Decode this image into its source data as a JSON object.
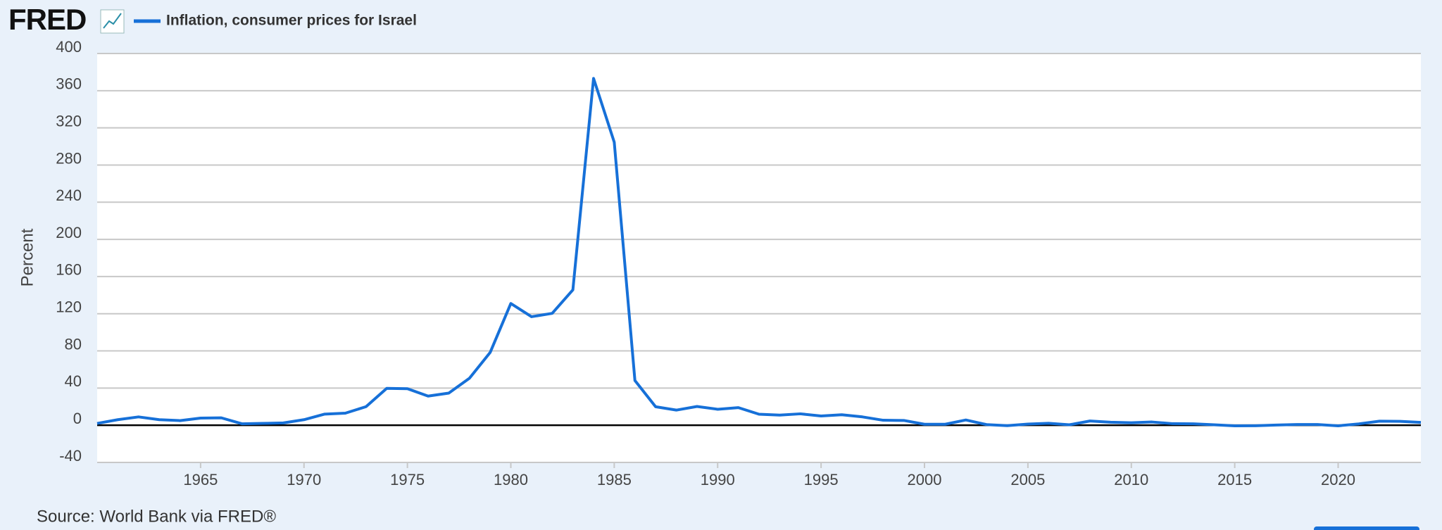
{
  "header": {
    "logo": "FRED"
  },
  "chart_data": {
    "type": "line",
    "y_label": "Percent",
    "source": "Source: World Bank via FRED®",
    "x": [
      1960,
      1961,
      1962,
      1963,
      1964,
      1965,
      1966,
      1967,
      1968,
      1969,
      1970,
      1971,
      1972,
      1973,
      1974,
      1975,
      1976,
      1977,
      1978,
      1979,
      1980,
      1981,
      1982,
      1983,
      1984,
      1985,
      1986,
      1987,
      1988,
      1989,
      1990,
      1991,
      1992,
      1993,
      1994,
      1995,
      1996,
      1997,
      1998,
      1999,
      2000,
      2001,
      2002,
      2003,
      2004,
      2005,
      2006,
      2007,
      2008,
      2009,
      2010,
      2011,
      2012,
      2013,
      2014,
      2015,
      2016,
      2017,
      2018,
      2019,
      2020,
      2021,
      2022,
      2023,
      2024
    ],
    "series": [
      {
        "name": "Inflation, consumer prices for Israel",
        "color": "#1670d8",
        "values": [
          2,
          6,
          9,
          6,
          5,
          7.7,
          8,
          1.6,
          2,
          2.5,
          6,
          12,
          13,
          20,
          39.7,
          39.3,
          31.4,
          34.6,
          50.6,
          78.3,
          131,
          116.8,
          120.4,
          145.7,
          373.2,
          304.6,
          48.1,
          19.9,
          16.3,
          20.2,
          17.2,
          19,
          11.9,
          10.9,
          12.3,
          10,
          11.3,
          9,
          5.4,
          5.2,
          1.1,
          1.1,
          5.7,
          0.7,
          -0.4,
          1.3,
          2.1,
          0.5,
          4.6,
          3.3,
          2.7,
          3.5,
          1.7,
          1.6,
          0.5,
          -0.6,
          -0.5,
          0.2,
          0.8,
          0.8,
          -0.6,
          1.5,
          4.4,
          4.2,
          3.1
        ]
      }
    ],
    "xlim": [
      1960,
      2024
    ],
    "xticks": [
      1965,
      1970,
      1975,
      1980,
      1985,
      1990,
      1995,
      2000,
      2005,
      2010,
      2015,
      2020
    ],
    "ylim": [
      -40,
      400
    ],
    "yticks": [
      -40,
      0,
      40,
      80,
      120,
      160,
      200,
      240,
      280,
      320,
      360,
      400
    ],
    "grid": true
  }
}
